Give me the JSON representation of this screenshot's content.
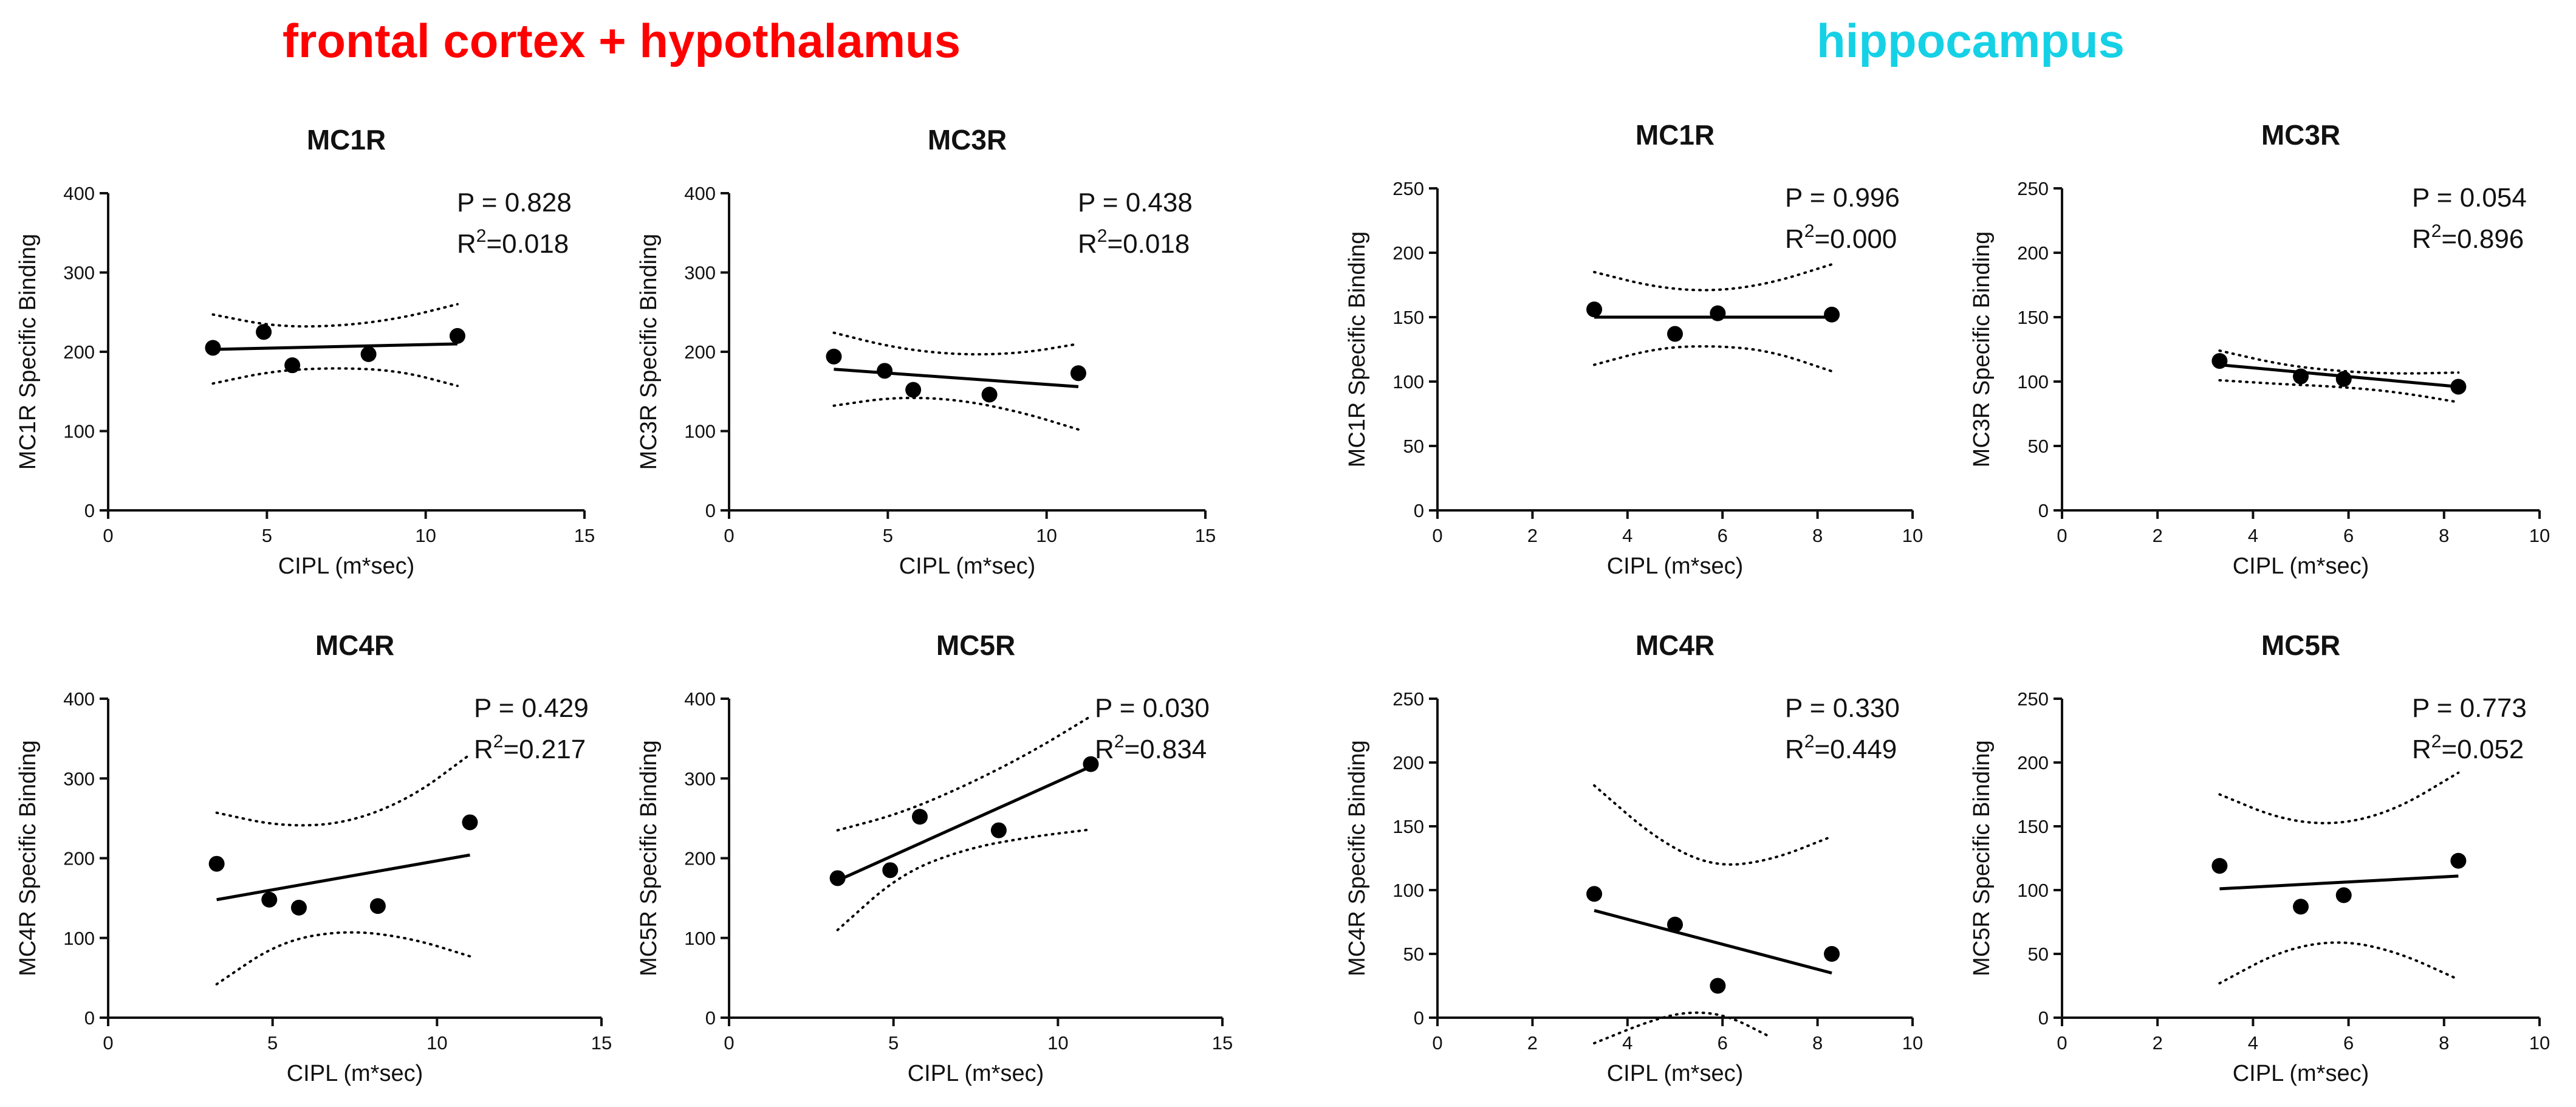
{
  "regions": {
    "left": {
      "title": "frontal cortex + hypothalamus",
      "color": "#ff0000"
    },
    "right": {
      "title": "hippocampus",
      "color": "#16d1e6"
    }
  },
  "chart_data": [
    {
      "type": "scatter",
      "region": "frontal cortex + hypothalamus",
      "title": "MC1R",
      "xlabel": "CIPL (m*sec)",
      "ylabel": "MC1R Specific Binding",
      "xlim": [
        0,
        15
      ],
      "ylim": [
        0,
        400
      ],
      "xticks": [
        0,
        5,
        10,
        15
      ],
      "yticks": [
        0,
        100,
        200,
        300,
        400
      ],
      "x": [
        3.3,
        4.9,
        5.8,
        8.2,
        11.0
      ],
      "y": [
        205,
        225,
        183,
        197,
        220
      ],
      "fit": {
        "x": [
          3.3,
          11.0
        ],
        "y": [
          203,
          210
        ]
      },
      "ci_upper": {
        "x": [
          3.3,
          5.2,
          7.2,
          9.2,
          11.0
        ],
        "y": [
          247,
          232,
          232,
          242,
          260
        ]
      },
      "ci_lower": {
        "x": [
          3.3,
          5.2,
          7.2,
          9.2,
          11.0
        ],
        "y": [
          160,
          176,
          180,
          176,
          157
        ]
      },
      "p_label": "P = 0.828",
      "r2_value": "=0.018"
    },
    {
      "type": "scatter",
      "region": "frontal cortex + hypothalamus",
      "title": "MC3R",
      "xlabel": "CIPL (m*sec)",
      "ylabel": "MC3R Specific Binding",
      "xlim": [
        0,
        15
      ],
      "ylim": [
        0,
        400
      ],
      "xticks": [
        0,
        5,
        10,
        15
      ],
      "yticks": [
        0,
        100,
        200,
        300,
        400
      ],
      "x": [
        3.3,
        4.9,
        5.8,
        8.2,
        11.0
      ],
      "y": [
        194,
        176,
        152,
        146,
        173
      ],
      "fit": {
        "x": [
          3.3,
          11.0
        ],
        "y": [
          178,
          156
        ]
      },
      "ci_upper": {
        "x": [
          3.3,
          5.2,
          7.2,
          9.2,
          11.0
        ],
        "y": [
          224,
          205,
          196,
          198,
          210
        ]
      },
      "ci_lower": {
        "x": [
          3.3,
          5.2,
          7.2,
          9.2,
          11.0
        ],
        "y": [
          132,
          143,
          140,
          124,
          102
        ]
      },
      "p_label": "P = 0.438",
      "r2_value": "=0.018"
    },
    {
      "type": "scatter",
      "region": "frontal cortex + hypothalamus",
      "title": "MC4R",
      "xlabel": "CIPL (m*sec)",
      "ylabel": "MC4R Specific Binding",
      "xlim": [
        0,
        15
      ],
      "ylim": [
        0,
        400
      ],
      "xticks": [
        0,
        5,
        10,
        15
      ],
      "yticks": [
        0,
        100,
        200,
        300,
        400
      ],
      "x": [
        3.3,
        4.9,
        5.8,
        8.2,
        11.0
      ],
      "y": [
        193,
        148,
        138,
        140,
        245
      ],
      "fit": {
        "x": [
          3.3,
          11.0
        ],
        "y": [
          148,
          204
        ]
      },
      "ci_upper": {
        "x": [
          3.3,
          5.2,
          7.2,
          9.2,
          11.0
        ],
        "y": [
          257,
          240,
          243,
          275,
          330
        ]
      },
      "ci_lower": {
        "x": [
          3.3,
          5.2,
          7.2,
          9.2,
          11.0
        ],
        "y": [
          42,
          95,
          110,
          100,
          77
        ]
      },
      "p_label": "P = 0.429",
      "r2_value": "=0.217"
    },
    {
      "type": "scatter",
      "region": "frontal cortex + hypothalamus",
      "title": "MC5R",
      "xlabel": "CIPL (m*sec)",
      "ylabel": "MC5R Specific Binding",
      "xlim": [
        0,
        15
      ],
      "ylim": [
        0,
        400
      ],
      "xticks": [
        0,
        5,
        10,
        15
      ],
      "yticks": [
        0,
        100,
        200,
        300,
        400
      ],
      "x": [
        3.3,
        4.9,
        5.8,
        8.2,
        11.0
      ],
      "y": [
        175,
        185,
        252,
        235,
        318
      ],
      "fit": {
        "x": [
          3.3,
          11.0
        ],
        "y": [
          172,
          315
        ]
      },
      "ci_upper": {
        "x": [
          3.3,
          5.2,
          7.2,
          9.2,
          11.0
        ],
        "y": [
          235,
          256,
          291,
          333,
          378
        ]
      },
      "ci_lower": {
        "x": [
          3.3,
          5.2,
          7.2,
          9.2,
          11.0
        ],
        "y": [
          110,
          180,
          212,
          227,
          236
        ]
      },
      "p_label": "P = 0.030",
      "r2_value": "=0.834"
    },
    {
      "type": "scatter",
      "region": "hippocampus",
      "title": "MC1R",
      "xlabel": "CIPL (m*sec)",
      "ylabel": "MC1R Specific Binding",
      "xlim": [
        0,
        10
      ],
      "ylim": [
        0,
        250
      ],
      "xticks": [
        0,
        2,
        4,
        6,
        8,
        10
      ],
      "yticks": [
        0,
        50,
        100,
        150,
        200,
        250
      ],
      "x": [
        3.3,
        5.0,
        5.9,
        8.3
      ],
      "y": [
        156,
        137,
        153,
        152
      ],
      "fit": {
        "x": [
          3.3,
          8.3
        ],
        "y": [
          150,
          150
        ]
      },
      "ci_upper": {
        "x": [
          3.3,
          4.6,
          5.8,
          7.0,
          8.3
        ],
        "y": [
          185,
          173,
          170,
          176,
          191
        ]
      },
      "ci_lower": {
        "x": [
          3.3,
          4.6,
          5.8,
          7.0,
          8.3
        ],
        "y": [
          113,
          126,
          128,
          124,
          108
        ]
      },
      "p_label": "P = 0.996",
      "r2_value": "=0.000"
    },
    {
      "type": "scatter",
      "region": "hippocampus",
      "title": "MC3R",
      "xlabel": "CIPL (m*sec)",
      "ylabel": "MC3R Specific Binding",
      "xlim": [
        0,
        10
      ],
      "ylim": [
        0,
        250
      ],
      "xticks": [
        0,
        2,
        4,
        6,
        8,
        10
      ],
      "yticks": [
        0,
        50,
        100,
        150,
        200,
        250
      ],
      "x": [
        3.3,
        5.0,
        5.9,
        8.3
      ],
      "y": [
        116,
        104,
        102,
        96
      ],
      "fit": {
        "x": [
          3.3,
          8.3
        ],
        "y": [
          113,
          96
        ]
      },
      "ci_upper": {
        "x": [
          3.3,
          4.6,
          5.8,
          7.0,
          8.3
        ],
        "y": [
          124,
          113,
          108,
          106,
          107
        ]
      },
      "ci_lower": {
        "x": [
          3.3,
          4.6,
          5.8,
          7.0,
          8.3
        ],
        "y": [
          101,
          98,
          96,
          92,
          84
        ]
      },
      "p_label": "P = 0.054",
      "r2_value": "=0.896"
    },
    {
      "type": "scatter",
      "region": "hippocampus",
      "title": "MC4R",
      "xlabel": "CIPL (m*sec)",
      "ylabel": "MC4R Specific Binding",
      "xlim": [
        0,
        10
      ],
      "ylim": [
        0,
        250
      ],
      "xticks": [
        0,
        2,
        4,
        6,
        8,
        10
      ],
      "yticks": [
        0,
        50,
        100,
        150,
        200,
        250
      ],
      "x": [
        3.3,
        5.0,
        5.9,
        8.3
      ],
      "y": [
        97,
        73,
        25,
        50
      ],
      "fit": {
        "x": [
          3.3,
          8.3
        ],
        "y": [
          84,
          35
        ]
      },
      "ci_upper": {
        "x": [
          3.3,
          4.6,
          5.8,
          7.0,
          8.3
        ],
        "y": [
          182,
          140,
          118,
          123,
          142
        ]
      },
      "ci_lower": {
        "x": [
          3.3,
          4.5,
          5.3,
          6.1,
          7.0
        ],
        "y": [
          -20,
          -2,
          5,
          2,
          -15
        ]
      },
      "p_label": "P = 0.330",
      "r2_value": "=0.449"
    },
    {
      "type": "scatter",
      "region": "hippocampus",
      "title": "MC5R",
      "xlabel": "CIPL (m*sec)",
      "ylabel": "MC5R Specific Binding",
      "xlim": [
        0,
        10
      ],
      "ylim": [
        0,
        250
      ],
      "xticks": [
        0,
        2,
        4,
        6,
        8,
        10
      ],
      "yticks": [
        0,
        50,
        100,
        150,
        200,
        250
      ],
      "x": [
        3.3,
        5.0,
        5.9,
        8.3
      ],
      "y": [
        119,
        87,
        96,
        123
      ],
      "fit": {
        "x": [
          3.3,
          8.3
        ],
        "y": [
          101,
          111
        ]
      },
      "ci_upper": {
        "x": [
          3.3,
          4.6,
          5.8,
          7.0,
          8.3
        ],
        "y": [
          175,
          155,
          151,
          163,
          192
        ]
      },
      "ci_lower": {
        "x": [
          3.3,
          4.6,
          5.8,
          7.0,
          8.3
        ],
        "y": [
          27,
          53,
          61,
          52,
          30
        ]
      },
      "p_label": "P = 0.773",
      "r2_value": "=0.052"
    }
  ]
}
